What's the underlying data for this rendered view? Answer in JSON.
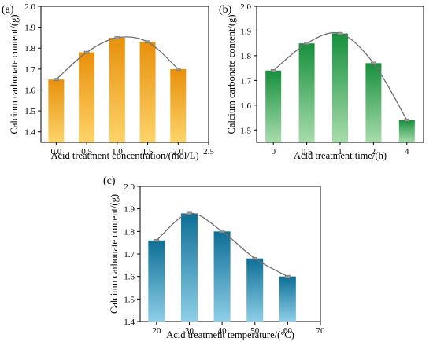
{
  "chart_data": [
    {
      "type": "bar",
      "panel_label": "(a)",
      "xlabel": "Acid treatment concentration/(mol/L)",
      "ylabel": "Calcium carbonate content/(g)",
      "x": [
        0.0,
        0.5,
        1.0,
        1.5,
        2.0
      ],
      "values": [
        1.65,
        1.78,
        1.85,
        1.83,
        1.7
      ],
      "xticks": [
        "0.0",
        "0.5",
        "1.0",
        "1.5",
        "2.0",
        "2.5"
      ],
      "xlim": [
        -0.25,
        2.5
      ],
      "yticks": [
        "1.4",
        "1.5",
        "1.6",
        "1.7",
        "1.8",
        "1.9",
        "2.0"
      ],
      "ylim": [
        1.35,
        2.0
      ],
      "bar_color_top": "#e8900a",
      "bar_color_bottom": "#fdd46a",
      "fit_curve": true
    },
    {
      "type": "bar",
      "panel_label": "(b)",
      "xlabel": "Acid treatment time/(h)",
      "ylabel": "Calcium carbonate content/(g)",
      "categories": [
        "0",
        "0.5",
        "1",
        "2",
        "4"
      ],
      "values": [
        1.74,
        1.85,
        1.89,
        1.77,
        1.54
      ],
      "yticks": [
        "1.5",
        "1.6",
        "1.7",
        "1.8",
        "1.9",
        "2.0"
      ],
      "ylim": [
        1.45,
        2.0
      ],
      "bar_color_top": "#16903c",
      "bar_color_bottom": "#a8dcac",
      "fit_curve": true
    },
    {
      "type": "bar",
      "panel_label": "(c)",
      "xlabel": "Acid treatment temperature/(°C)",
      "ylabel": "Calcium carbonate content/(g)",
      "x": [
        20,
        30,
        40,
        50,
        60
      ],
      "values": [
        1.76,
        1.88,
        1.8,
        1.68,
        1.6
      ],
      "xticks": [
        "20",
        "30",
        "40",
        "50",
        "60",
        "70"
      ],
      "xlim": [
        15,
        70
      ],
      "yticks": [
        "1.4",
        "1.5",
        "1.6",
        "1.7",
        "1.8",
        "1.9",
        "2.0"
      ],
      "ylim": [
        1.4,
        2.0
      ],
      "bar_color_top": "#0d6f96",
      "bar_color_bottom": "#8ecfe8",
      "fit_curve": true
    }
  ]
}
